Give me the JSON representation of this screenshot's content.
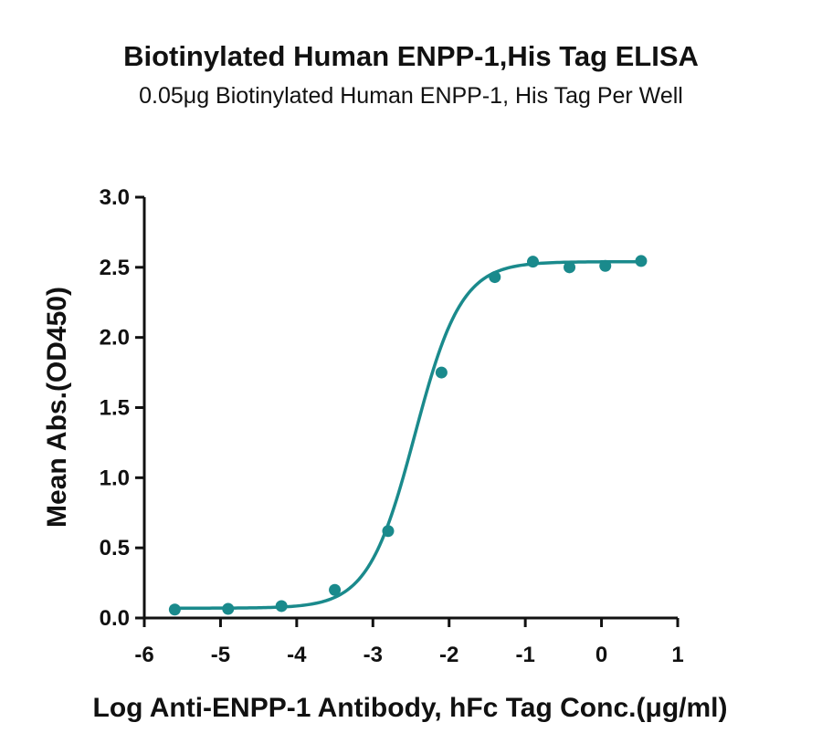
{
  "chart_data": {
    "type": "scatter",
    "title": "Biotinylated Human ENPP-1,His Tag ELISA",
    "subtitle": "0.05μg Biotinylated Human ENPP-1, His Tag Per Well",
    "xlabel": "Log Anti-ENPP-1 Antibody, hFc Tag Conc.(μg/ml)",
    "ylabel": "Mean Abs.(OD450)",
    "xlim": [
      -6,
      1
    ],
    "ylim": [
      0,
      3.0
    ],
    "x_ticks": [
      -6,
      -5,
      -4,
      -3,
      -2,
      -1,
      0,
      1
    ],
    "x_tick_labels": [
      "-6",
      "-5",
      "-4",
      "-3",
      "-2",
      "-1",
      "0",
      "1"
    ],
    "y_ticks": [
      0,
      0.5,
      1.0,
      1.5,
      2.0,
      2.5,
      3.0
    ],
    "y_tick_labels": [
      "0.0",
      "0.5",
      "1.0",
      "1.5",
      "2.0",
      "2.5",
      "3.0"
    ],
    "grid": false,
    "legend": "none",
    "color": "#1a8a8c",
    "series": [
      {
        "x": [
          -5.6,
          -4.9,
          -4.2,
          -3.5,
          -2.8,
          -2.1,
          -1.4,
          -0.9,
          -0.42,
          0.05,
          0.52
        ],
        "y": [
          0.06,
          0.065,
          0.085,
          0.2,
          0.62,
          1.75,
          2.43,
          2.54,
          2.5,
          2.51,
          2.545
        ],
        "fit": {
          "model": "4PL",
          "bottom": 0.07,
          "top": 2.54,
          "log_ec50": -2.45,
          "hill_slope": 1.42
        }
      }
    ]
  }
}
